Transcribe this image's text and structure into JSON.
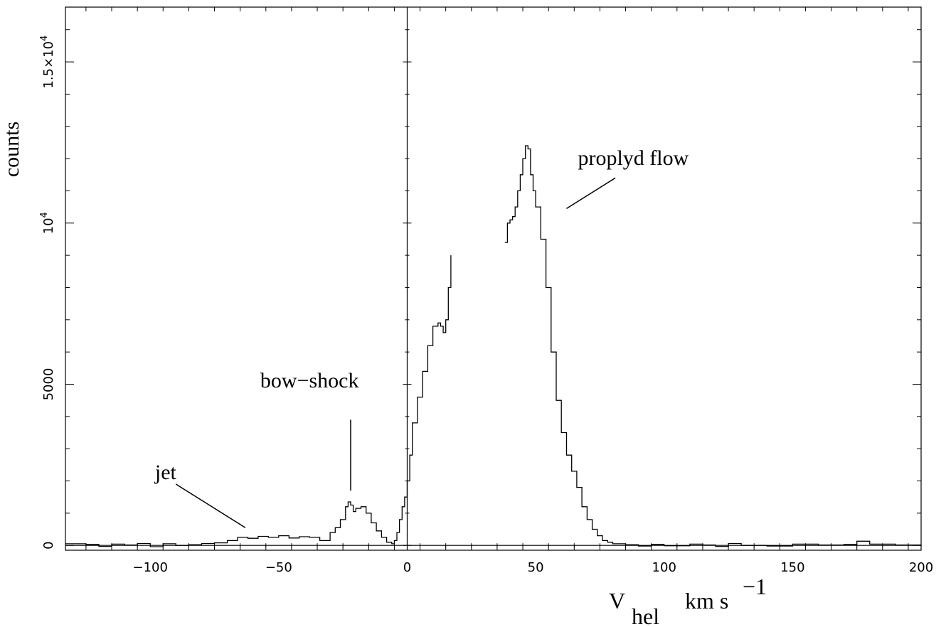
{
  "chart_data": {
    "type": "line",
    "title": "",
    "xlabel": "V",
    "xlabel_sub": "hel",
    "xlabel_unit": "km s",
    "xlabel_unit_sup": "−1",
    "ylabel": "counts",
    "xlim": [
      -133,
      200
    ],
    "ylim": [
      -150,
      16700
    ],
    "x_ticks": [
      -100,
      -50,
      0,
      50,
      100,
      150,
      200
    ],
    "x_tick_labels": [
      "−100",
      "−50",
      "0",
      "50",
      "100",
      "150",
      "200"
    ],
    "y_ticks": [
      0,
      5000,
      10000,
      15000
    ],
    "y_tick_labels": [
      "0",
      "5000",
      "10^4",
      "1.5×10^4"
    ],
    "reference_lines": {
      "vertical_x": 0,
      "horizontal_y": 0
    },
    "grid": false,
    "legend": "none",
    "annotations": [
      {
        "text": "jet",
        "target": [
          -63,
          550
        ]
      },
      {
        "text": "bow−shock",
        "target": [
          -22,
          1700
        ]
      },
      {
        "text": "proplyd flow",
        "target": [
          62,
          10450
        ]
      }
    ],
    "series": [
      {
        "segments": [
          [
            [
              -133,
              50
            ],
            [
              -125,
              30
            ],
            [
              -120,
              -30
            ],
            [
              -115,
              40
            ],
            [
              -110,
              10
            ],
            [
              -105,
              60
            ],
            [
              -100,
              -40
            ],
            [
              -95,
              50
            ],
            [
              -90,
              0
            ],
            [
              -85,
              20
            ],
            [
              -80,
              60
            ],
            [
              -75,
              80
            ],
            [
              -70,
              150
            ],
            [
              -66,
              250
            ],
            [
              -62,
              220
            ],
            [
              -58,
              280
            ],
            [
              -54,
              250
            ],
            [
              -50,
              300
            ],
            [
              -46,
              230
            ],
            [
              -42,
              270
            ],
            [
              -38,
              250
            ],
            [
              -34,
              150
            ],
            [
              -30,
              400
            ],
            [
              -28,
              550
            ],
            [
              -26,
              800
            ],
            [
              -24,
              1200
            ],
            [
              -23,
              1350
            ],
            [
              -22,
              1250
            ],
            [
              -21,
              1050
            ],
            [
              -20,
              1150
            ],
            [
              -18,
              1200
            ],
            [
              -16,
              1000
            ],
            [
              -14,
              700
            ],
            [
              -12,
              450
            ],
            [
              -10,
              250
            ],
            [
              -8,
              100
            ],
            [
              -6,
              50
            ],
            [
              -5,
              150
            ],
            [
              -4,
              400
            ],
            [
              -3,
              800
            ],
            [
              -2,
              1200
            ],
            [
              -1,
              1500
            ],
            [
              0,
              2000
            ],
            [
              1,
              2800
            ],
            [
              2,
              3800
            ],
            [
              4,
              4600
            ],
            [
              6,
              5400
            ],
            [
              8,
              6200
            ],
            [
              10,
              6800
            ],
            [
              12,
              6900
            ],
            [
              13,
              6800
            ],
            [
              14,
              6600
            ],
            [
              15,
              7000
            ],
            [
              16,
              8000
            ],
            [
              17,
              9000
            ]
          ],
          [
            [
              38,
              9400
            ],
            [
              39,
              10000
            ],
            [
              40,
              10100
            ],
            [
              41,
              10200
            ],
            [
              42,
              10500
            ],
            [
              43,
              11000
            ],
            [
              44,
              11500
            ],
            [
              45,
              12000
            ],
            [
              46,
              12400
            ],
            [
              47,
              12300
            ],
            [
              48,
              11500
            ],
            [
              49,
              11000
            ],
            [
              50,
              10500
            ],
            [
              52,
              9500
            ],
            [
              54,
              8000
            ],
            [
              56,
              6000
            ],
            [
              58,
              4500
            ],
            [
              60,
              3500
            ],
            [
              62,
              2800
            ],
            [
              64,
              2300
            ],
            [
              66,
              1800
            ],
            [
              68,
              1200
            ],
            [
              70,
              800
            ],
            [
              72,
              500
            ],
            [
              74,
              300
            ],
            [
              76,
              150
            ],
            [
              78,
              100
            ],
            [
              80,
              50
            ],
            [
              85,
              20
            ],
            [
              90,
              -20
            ],
            [
              95,
              30
            ],
            [
              100,
              -10
            ],
            [
              110,
              40
            ],
            [
              115,
              10
            ],
            [
              120,
              -30
            ],
            [
              125,
              60
            ],
            [
              130,
              0
            ],
            [
              140,
              -20
            ],
            [
              150,
              40
            ],
            [
              160,
              10
            ],
            [
              170,
              30
            ],
            [
              175,
              130
            ],
            [
              180,
              40
            ],
            [
              190,
              10
            ],
            [
              200,
              -20
            ]
          ]
        ]
      }
    ]
  }
}
